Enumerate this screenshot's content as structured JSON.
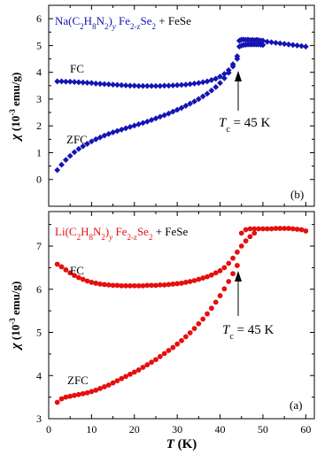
{
  "chart_data": [
    {
      "panel": "(b)",
      "type": "scatter",
      "marker": "diamond",
      "color": "#1414b4",
      "title_parts": {
        "element": "Na",
        "formula_tail": "(C2H8N2)y Fe2-z Se2",
        "suffix": " + FeSe"
      },
      "ylabel": "χ (10⁻³ emu/g)",
      "ylim": [
        -1,
        6.5
      ],
      "yticks": [
        0,
        1,
        2,
        3,
        4,
        5,
        6
      ],
      "xlim": [
        0,
        62
      ],
      "labels": {
        "fc": "FC",
        "zfc": "ZFC",
        "tc": "T",
        "tc_sub": "c",
        "tc_value": " = 45 K"
      },
      "series": [
        {
          "name": "FC",
          "x": [
            2,
            3,
            4,
            5,
            6,
            7,
            8,
            9,
            10,
            11,
            12,
            13,
            14,
            15,
            16,
            17,
            18,
            19,
            20,
            21,
            22,
            23,
            24,
            25,
            26,
            27,
            28,
            29,
            30,
            31,
            32,
            33,
            34,
            35,
            36,
            37,
            38,
            39,
            40,
            41,
            42,
            43,
            44
          ],
          "y": [
            3.66,
            3.66,
            3.65,
            3.65,
            3.64,
            3.63,
            3.62,
            3.61,
            3.6,
            3.58,
            3.57,
            3.56,
            3.55,
            3.54,
            3.53,
            3.52,
            3.51,
            3.5,
            3.5,
            3.49,
            3.49,
            3.49,
            3.49,
            3.49,
            3.49,
            3.5,
            3.5,
            3.51,
            3.52,
            3.53,
            3.54,
            3.56,
            3.58,
            3.6,
            3.63,
            3.66,
            3.71,
            3.76,
            3.84,
            3.94,
            4.08,
            4.3,
            4.6
          ]
        },
        {
          "name": "ZFC",
          "x": [
            2,
            3,
            4,
            5,
            6,
            7,
            8,
            9,
            10,
            11,
            12,
            13,
            14,
            15,
            16,
            17,
            18,
            19,
            20,
            21,
            22,
            23,
            24,
            25,
            26,
            27,
            28,
            29,
            30,
            31,
            32,
            33,
            34,
            35,
            36,
            37,
            38,
            39,
            40,
            41,
            42,
            43,
            44
          ],
          "y": [
            0.35,
            0.55,
            0.73,
            0.88,
            1.02,
            1.14,
            1.24,
            1.33,
            1.42,
            1.5,
            1.57,
            1.64,
            1.7,
            1.76,
            1.81,
            1.86,
            1.91,
            1.96,
            2.01,
            2.06,
            2.11,
            2.16,
            2.22,
            2.28,
            2.34,
            2.4,
            2.46,
            2.53,
            2.6,
            2.67,
            2.75,
            2.83,
            2.91,
            3.0,
            3.1,
            3.2,
            3.32,
            3.45,
            3.6,
            3.78,
            3.98,
            4.22,
            4.5
          ]
        },
        {
          "name": "above Tc",
          "x": [
            44.5,
            45,
            45.5,
            46,
            46.5,
            47,
            47.5,
            48,
            48.5,
            49,
            49.5,
            50,
            51,
            52,
            53,
            54,
            55,
            56,
            57,
            58,
            59,
            60
          ],
          "y": [
            5.18,
            5.22,
            5.22,
            5.21,
            5.22,
            5.2,
            5.21,
            5.2,
            5.21,
            5.2,
            5.18,
            5.18,
            5.14,
            5.12,
            5.1,
            5.08,
            5.06,
            5.04,
            5.02,
            5.0,
            4.98,
            4.96
          ]
        },
        {
          "name": "above Tc (lower)",
          "x": [
            44.5,
            45,
            45.5,
            46,
            46.5,
            47,
            47.5,
            48,
            48.5,
            49,
            49.5,
            50
          ],
          "y": [
            4.96,
            5.0,
            5.02,
            5.03,
            5.04,
            5.04,
            5.04,
            5.04,
            5.04,
            5.04,
            5.03,
            5.02
          ]
        }
      ]
    },
    {
      "panel": "(a)",
      "type": "scatter",
      "marker": "circle",
      "color": "#e60f0f",
      "title_parts": {
        "element": "Li",
        "formula_tail": "(C2H8N2)y Fe2-z Se2",
        "suffix": " + FeSe"
      },
      "ylabel": "χ (10⁻³ emu/g)",
      "xlabel": "T (K)",
      "ylim": [
        3,
        7.8
      ],
      "yticks": [
        3,
        4,
        5,
        6,
        7
      ],
      "xlim": [
        0,
        62
      ],
      "xticks": [
        0,
        10,
        20,
        30,
        40,
        50,
        60
      ],
      "labels": {
        "fc": "FC",
        "zfc": "ZFC",
        "tc": "T",
        "tc_sub": "c",
        "tc_value": " = 45 K"
      },
      "series": [
        {
          "name": "FC",
          "x": [
            2,
            3,
            4,
            5,
            6,
            7,
            8,
            9,
            10,
            11,
            12,
            13,
            14,
            15,
            16,
            17,
            18,
            19,
            20,
            21,
            22,
            23,
            24,
            25,
            26,
            27,
            28,
            29,
            30,
            31,
            32,
            33,
            34,
            35,
            36,
            37,
            38,
            39,
            40,
            41,
            42,
            43,
            44
          ],
          "y": [
            6.58,
            6.52,
            6.45,
            6.38,
            6.32,
            6.27,
            6.23,
            6.19,
            6.16,
            6.14,
            6.12,
            6.11,
            6.1,
            6.09,
            6.09,
            6.08,
            6.08,
            6.08,
            6.08,
            6.08,
            6.08,
            6.09,
            6.09,
            6.09,
            6.1,
            6.1,
            6.11,
            6.12,
            6.13,
            6.14,
            6.16,
            6.18,
            6.2,
            6.23,
            6.26,
            6.29,
            6.33,
            6.38,
            6.43,
            6.5,
            6.6,
            6.72,
            6.86
          ]
        },
        {
          "name": "ZFC",
          "x": [
            2,
            3,
            4,
            5,
            6,
            7,
            8,
            9,
            10,
            11,
            12,
            13,
            14,
            15,
            16,
            17,
            18,
            19,
            20,
            21,
            22,
            23,
            24,
            25,
            26,
            27,
            28,
            29,
            30,
            31,
            32,
            33,
            34,
            35,
            36,
            37,
            38,
            39,
            40,
            41,
            42,
            43,
            44
          ],
          "y": [
            3.38,
            3.46,
            3.5,
            3.52,
            3.54,
            3.56,
            3.58,
            3.6,
            3.63,
            3.66,
            3.7,
            3.74,
            3.78,
            3.83,
            3.88,
            3.93,
            3.98,
            4.03,
            4.08,
            4.13,
            4.19,
            4.25,
            4.31,
            4.37,
            4.44,
            4.51,
            4.58,
            4.65,
            4.73,
            4.81,
            4.9,
            4.99,
            5.09,
            5.2,
            5.31,
            5.43,
            5.56,
            5.7,
            5.85,
            6.01,
            6.18,
            6.36,
            6.55
          ]
        },
        {
          "name": "above Tc",
          "x": [
            45,
            46,
            47,
            48,
            49,
            50,
            51,
            52,
            53,
            54,
            55,
            56,
            57,
            58,
            59,
            60
          ],
          "y": [
            7.3,
            7.38,
            7.4,
            7.4,
            7.4,
            7.4,
            7.4,
            7.4,
            7.41,
            7.41,
            7.41,
            7.41,
            7.4,
            7.39,
            7.38,
            7.35
          ]
        },
        {
          "name": "above Tc (lower)",
          "x": [
            45,
            46,
            47,
            48
          ],
          "y": [
            7.0,
            7.12,
            7.22,
            7.3
          ]
        }
      ]
    }
  ]
}
